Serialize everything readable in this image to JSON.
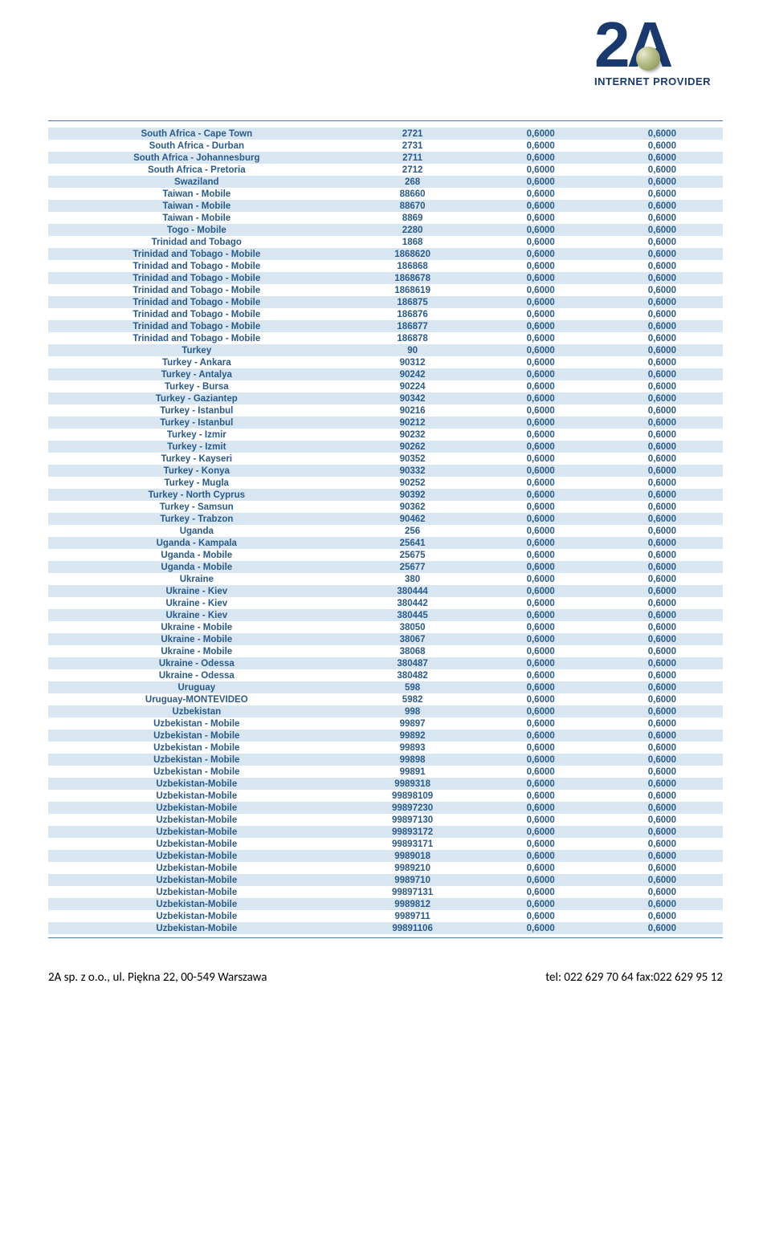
{
  "logo": {
    "main": "2A",
    "sub": "INTERNET PROVIDER"
  },
  "rows": [
    {
      "name": "South Africa - Cape Town",
      "code": "2721",
      "r1": "0,6000",
      "r2": "0,6000"
    },
    {
      "name": "South Africa - Durban",
      "code": "2731",
      "r1": "0,6000",
      "r2": "0,6000"
    },
    {
      "name": "South Africa - Johannesburg",
      "code": "2711",
      "r1": "0,6000",
      "r2": "0,6000"
    },
    {
      "name": "South Africa - Pretoria",
      "code": "2712",
      "r1": "0,6000",
      "r2": "0,6000"
    },
    {
      "name": "Swaziland",
      "code": "268",
      "r1": "0,6000",
      "r2": "0,6000"
    },
    {
      "name": "Taiwan - Mobile",
      "code": "88660",
      "r1": "0,6000",
      "r2": "0,6000"
    },
    {
      "name": "Taiwan - Mobile",
      "code": "88670",
      "r1": "0,6000",
      "r2": "0,6000"
    },
    {
      "name": "Taiwan - Mobile",
      "code": "8869",
      "r1": "0,6000",
      "r2": "0,6000"
    },
    {
      "name": "Togo - Mobile",
      "code": "2280",
      "r1": "0,6000",
      "r2": "0,6000"
    },
    {
      "name": "Trinidad and Tobago",
      "code": "1868",
      "r1": "0,6000",
      "r2": "0,6000"
    },
    {
      "name": "Trinidad and Tobago - Mobile",
      "code": "1868620",
      "r1": "0,6000",
      "r2": "0,6000"
    },
    {
      "name": "Trinidad and Tobago - Mobile",
      "code": "186868",
      "r1": "0,6000",
      "r2": "0,6000"
    },
    {
      "name": "Trinidad and Tobago - Mobile",
      "code": "1868678",
      "r1": "0,6000",
      "r2": "0,6000"
    },
    {
      "name": "Trinidad and Tobago - Mobile",
      "code": "1868619",
      "r1": "0,6000",
      "r2": "0,6000"
    },
    {
      "name": "Trinidad and Tobago - Mobile",
      "code": "186875",
      "r1": "0,6000",
      "r2": "0,6000"
    },
    {
      "name": "Trinidad and Tobago - Mobile",
      "code": "186876",
      "r1": "0,6000",
      "r2": "0,6000"
    },
    {
      "name": "Trinidad and Tobago - Mobile",
      "code": "186877",
      "r1": "0,6000",
      "r2": "0,6000"
    },
    {
      "name": "Trinidad and Tobago - Mobile",
      "code": "186878",
      "r1": "0,6000",
      "r2": "0,6000"
    },
    {
      "name": "Turkey",
      "code": "90",
      "r1": "0,6000",
      "r2": "0,6000"
    },
    {
      "name": "Turkey - Ankara",
      "code": "90312",
      "r1": "0,6000",
      "r2": "0,6000"
    },
    {
      "name": "Turkey - Antalya",
      "code": "90242",
      "r1": "0,6000",
      "r2": "0,6000"
    },
    {
      "name": "Turkey - Bursa",
      "code": "90224",
      "r1": "0,6000",
      "r2": "0,6000"
    },
    {
      "name": "Turkey - Gaziantep",
      "code": "90342",
      "r1": "0,6000",
      "r2": "0,6000"
    },
    {
      "name": "Turkey - Istanbul",
      "code": "90216",
      "r1": "0,6000",
      "r2": "0,6000"
    },
    {
      "name": "Turkey - Istanbul",
      "code": "90212",
      "r1": "0,6000",
      "r2": "0,6000"
    },
    {
      "name": "Turkey - Izmir",
      "code": "90232",
      "r1": "0,6000",
      "r2": "0,6000"
    },
    {
      "name": "Turkey - Izmit",
      "code": "90262",
      "r1": "0,6000",
      "r2": "0,6000"
    },
    {
      "name": "Turkey - Kayseri",
      "code": "90352",
      "r1": "0,6000",
      "r2": "0,6000"
    },
    {
      "name": "Turkey - Konya",
      "code": "90332",
      "r1": "0,6000",
      "r2": "0,6000"
    },
    {
      "name": "Turkey - Mugla",
      "code": "90252",
      "r1": "0,6000",
      "r2": "0,6000"
    },
    {
      "name": "Turkey - North Cyprus",
      "code": "90392",
      "r1": "0,6000",
      "r2": "0,6000"
    },
    {
      "name": "Turkey - Samsun",
      "code": "90362",
      "r1": "0,6000",
      "r2": "0,6000"
    },
    {
      "name": "Turkey - Trabzon",
      "code": "90462",
      "r1": "0,6000",
      "r2": "0,6000"
    },
    {
      "name": "Uganda",
      "code": "256",
      "r1": "0,6000",
      "r2": "0,6000"
    },
    {
      "name": "Uganda - Kampala",
      "code": "25641",
      "r1": "0,6000",
      "r2": "0,6000"
    },
    {
      "name": "Uganda - Mobile",
      "code": "25675",
      "r1": "0,6000",
      "r2": "0,6000"
    },
    {
      "name": "Uganda - Mobile",
      "code": "25677",
      "r1": "0,6000",
      "r2": "0,6000"
    },
    {
      "name": "Ukraine",
      "code": "380",
      "r1": "0,6000",
      "r2": "0,6000"
    },
    {
      "name": "Ukraine - Kiev",
      "code": "380444",
      "r1": "0,6000",
      "r2": "0,6000"
    },
    {
      "name": "Ukraine - Kiev",
      "code": "380442",
      "r1": "0,6000",
      "r2": "0,6000"
    },
    {
      "name": "Ukraine - Kiev",
      "code": "380445",
      "r1": "0,6000",
      "r2": "0,6000"
    },
    {
      "name": "Ukraine - Mobile",
      "code": "38050",
      "r1": "0,6000",
      "r2": "0,6000"
    },
    {
      "name": "Ukraine - Mobile",
      "code": "38067",
      "r1": "0,6000",
      "r2": "0,6000"
    },
    {
      "name": "Ukraine - Mobile",
      "code": "38068",
      "r1": "0,6000",
      "r2": "0,6000"
    },
    {
      "name": "Ukraine - Odessa",
      "code": "380487",
      "r1": "0,6000",
      "r2": "0,6000"
    },
    {
      "name": "Ukraine - Odessa",
      "code": "380482",
      "r1": "0,6000",
      "r2": "0,6000"
    },
    {
      "name": "Uruguay",
      "code": "598",
      "r1": "0,6000",
      "r2": "0,6000"
    },
    {
      "name": "Uruguay-MONTEVIDEO",
      "code": "5982",
      "r1": "0,6000",
      "r2": "0,6000"
    },
    {
      "name": "Uzbekistan",
      "code": "998",
      "r1": "0,6000",
      "r2": "0,6000"
    },
    {
      "name": "Uzbekistan - Mobile",
      "code": "99897",
      "r1": "0,6000",
      "r2": "0,6000"
    },
    {
      "name": "Uzbekistan - Mobile",
      "code": "99892",
      "r1": "0,6000",
      "r2": "0,6000"
    },
    {
      "name": "Uzbekistan - Mobile",
      "code": "99893",
      "r1": "0,6000",
      "r2": "0,6000"
    },
    {
      "name": "Uzbekistan - Mobile",
      "code": "99898",
      "r1": "0,6000",
      "r2": "0,6000"
    },
    {
      "name": "Uzbekistan - Mobile",
      "code": "99891",
      "r1": "0,6000",
      "r2": "0,6000"
    },
    {
      "name": "Uzbekistan-Mobile",
      "code": "9989318",
      "r1": "0,6000",
      "r2": "0,6000"
    },
    {
      "name": "Uzbekistan-Mobile",
      "code": "99898109",
      "r1": "0,6000",
      "r2": "0,6000"
    },
    {
      "name": "Uzbekistan-Mobile",
      "code": "99897230",
      "r1": "0,6000",
      "r2": "0,6000"
    },
    {
      "name": "Uzbekistan-Mobile",
      "code": "99897130",
      "r1": "0,6000",
      "r2": "0,6000"
    },
    {
      "name": "Uzbekistan-Mobile",
      "code": "99893172",
      "r1": "0,6000",
      "r2": "0,6000"
    },
    {
      "name": "Uzbekistan-Mobile",
      "code": "99893171",
      "r1": "0,6000",
      "r2": "0,6000"
    },
    {
      "name": "Uzbekistan-Mobile",
      "code": "9989018",
      "r1": "0,6000",
      "r2": "0,6000"
    },
    {
      "name": "Uzbekistan-Mobile",
      "code": "9989210",
      "r1": "0,6000",
      "r2": "0,6000"
    },
    {
      "name": "Uzbekistan-Mobile",
      "code": "9989710",
      "r1": "0,6000",
      "r2": "0,6000"
    },
    {
      "name": "Uzbekistan-Mobile",
      "code": "99897131",
      "r1": "0,6000",
      "r2": "0,6000"
    },
    {
      "name": "Uzbekistan-Mobile",
      "code": "9989812",
      "r1": "0,6000",
      "r2": "0,6000"
    },
    {
      "name": "Uzbekistan-Mobile",
      "code": "9989711",
      "r1": "0,6000",
      "r2": "0,6000"
    },
    {
      "name": "Uzbekistan-Mobile",
      "code": "99891106",
      "r1": "0,6000",
      "r2": "0,6000"
    }
  ],
  "footer": {
    "left": "2A sp. z o.o., ul. Piękna 22, 00-549 Warszawa",
    "right": "tel: 022 629 70 64   fax:022 629 95 12"
  },
  "style": {
    "row_even_bg": "#d8e6f2",
    "row_odd_bg": "#ffffff",
    "text_color": "#2a5a8a",
    "hr_color": "#4a7aa8",
    "font_size": 11.5
  }
}
